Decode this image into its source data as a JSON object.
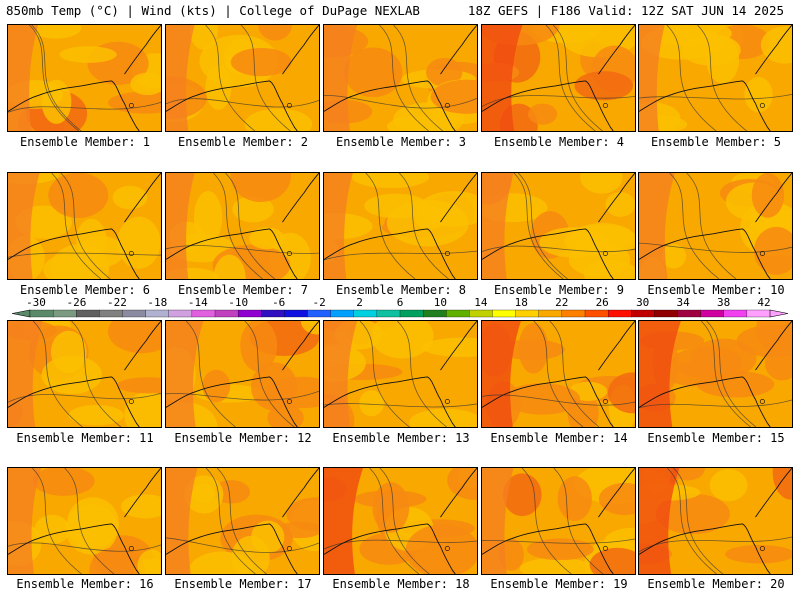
{
  "header": {
    "left": "850mb Temp (°C) | Wind (kts) | College of DuPage NEXLAB",
    "right": "18Z GEFS | F186 Valid: 12Z SAT JUN 14 2025"
  },
  "panels": [
    {
      "label": "Ensemble Member: 1",
      "warm": 0.35
    },
    {
      "label": "Ensemble Member: 2",
      "warm": 0.3
    },
    {
      "label": "Ensemble Member: 3",
      "warm": 0.45
    },
    {
      "label": "Ensemble Member: 4",
      "warm": 0.7
    },
    {
      "label": "Ensemble Member: 5",
      "warm": 0.2
    },
    {
      "label": "Ensemble Member: 6",
      "warm": 0.4
    },
    {
      "label": "Ensemble Member: 7",
      "warm": 0.3
    },
    {
      "label": "Ensemble Member: 8",
      "warm": 0.3
    },
    {
      "label": "Ensemble Member: 9",
      "warm": 0.4
    },
    {
      "label": "Ensemble Member: 10",
      "warm": 0.55
    },
    {
      "label": "Ensemble Member: 11",
      "warm": 0.5
    },
    {
      "label": "Ensemble Member: 12",
      "warm": 0.6
    },
    {
      "label": "Ensemble Member: 13",
      "warm": 0.45
    },
    {
      "label": "Ensemble Member: 14",
      "warm": 0.65
    },
    {
      "label": "Ensemble Member: 15",
      "warm": 0.75
    },
    {
      "label": "Ensemble Member: 16",
      "warm": 0.45
    },
    {
      "label": "Ensemble Member: 17",
      "warm": 0.4
    },
    {
      "label": "Ensemble Member: 18",
      "warm": 0.65
    },
    {
      "label": "Ensemble Member: 19",
      "warm": 0.4
    },
    {
      "label": "Ensemble Member: 20",
      "warm": 0.7
    }
  ],
  "colorbar": {
    "labels": [
      "-30",
      "-26",
      "-22",
      "-18",
      "-14",
      "-10",
      "-6",
      "-2",
      "2",
      "6",
      "10",
      "14",
      "18",
      "22",
      "26",
      "30",
      "34",
      "38",
      "42"
    ],
    "colors": [
      "#5a8a6a",
      "#7a9a82",
      "#606060",
      "#808080",
      "#8a8aa0",
      "#b0b0d0",
      "#d0a0e0",
      "#e060e0",
      "#c040c0",
      "#9000d0",
      "#3010c0",
      "#1010e0",
      "#2060ff",
      "#00a0ff",
      "#00d0e0",
      "#10c0a0",
      "#00a060",
      "#208020",
      "#60b000",
      "#c0d000",
      "#ffff00",
      "#ffd000",
      "#f9a800",
      "#ff8000",
      "#ff5000",
      "#ff1000",
      "#c00000",
      "#900000",
      "#a00040",
      "#d000a0",
      "#f040f0",
      "#ffa0ff"
    ]
  }
}
